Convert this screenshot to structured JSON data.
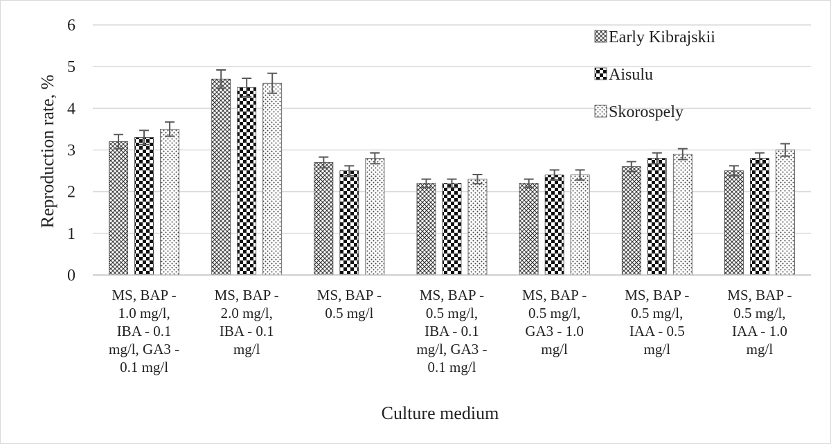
{
  "chart_data": {
    "type": "bar",
    "title": "",
    "xlabel": "Culture medium",
    "ylabel": "Reproduction rate, %",
    "ylim": [
      0,
      6
    ],
    "yticks": [
      0,
      1,
      2,
      3,
      4,
      5,
      6
    ],
    "grid": true,
    "legend_position": "top-right",
    "categories": [
      [
        "MS, BAP -",
        "1.0 mg/l,",
        "IBA - 0.1",
        "mg/l, GA3 -",
        "0.1 mg/l"
      ],
      [
        "MS, BAP -",
        "2.0 mg/l,",
        "IBA - 0.1",
        "mg/l"
      ],
      [
        "MS, BAP -",
        "0.5 mg/l"
      ],
      [
        "MS, BAP -",
        "0.5 mg/l,",
        "IBA - 0.1",
        "mg/l, GA3 -",
        "0.1 mg/l"
      ],
      [
        "MS, BAP -",
        "0.5 mg/l,",
        "GA3 - 1.0",
        "mg/l"
      ],
      [
        "MS, BAP -",
        "0.5 mg/l,",
        "IAA - 0.5",
        "mg/l"
      ],
      [
        "MS, BAP -",
        "0.5 mg/l,",
        "IAA - 1.0",
        "mg/l"
      ]
    ],
    "series": [
      {
        "name": "Early Kibrajskii",
        "pattern": "crosshatch",
        "values": [
          3.2,
          4.7,
          2.7,
          2.2,
          2.2,
          2.6,
          2.5
        ],
        "errors": [
          0.17,
          0.22,
          0.13,
          0.1,
          0.1,
          0.12,
          0.12
        ]
      },
      {
        "name": "Aisulu",
        "pattern": "checker",
        "values": [
          3.3,
          4.5,
          2.5,
          2.2,
          2.4,
          2.8,
          2.8
        ],
        "errors": [
          0.17,
          0.22,
          0.12,
          0.1,
          0.12,
          0.13,
          0.13
        ]
      },
      {
        "name": "Skorospely",
        "pattern": "dots",
        "values": [
          3.5,
          4.6,
          2.8,
          2.3,
          2.4,
          2.9,
          3.0
        ],
        "errors": [
          0.17,
          0.24,
          0.13,
          0.11,
          0.12,
          0.13,
          0.15
        ]
      }
    ]
  }
}
